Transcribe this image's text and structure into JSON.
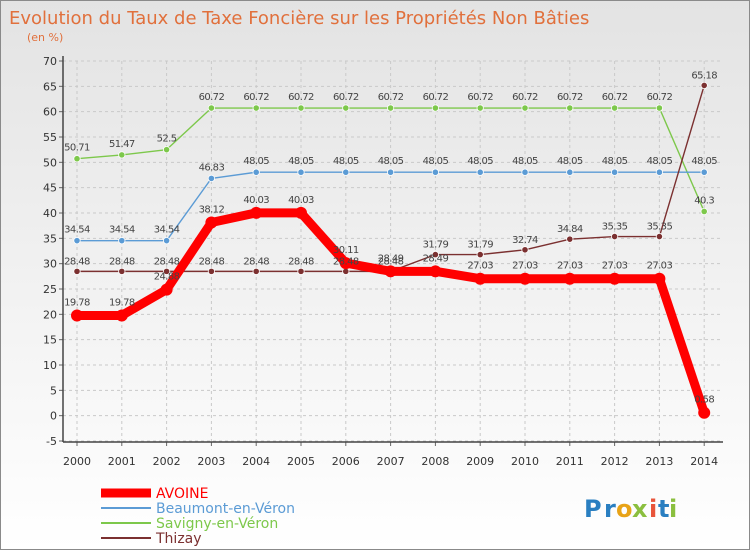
{
  "chart_data": {
    "type": "line",
    "title": "Evolution du Taux de Taxe Foncière sur les Propriétés Non Bâties",
    "subtitle": "(en %)",
    "xlabel": "",
    "ylabel": "",
    "ylim": [
      -5,
      70
    ],
    "ytick_step": 5,
    "grid": true,
    "legend_position": "bottom-left",
    "categories": [
      "2000",
      "2001",
      "2002",
      "2003",
      "2004",
      "2005",
      "2006",
      "2007",
      "2008",
      "2009",
      "2010",
      "2011",
      "2012",
      "2013",
      "2014"
    ],
    "series": [
      {
        "name": "Savigny-en-Véron",
        "color": "#7dc84b",
        "values": [
          50.71,
          51.47,
          52.5,
          60.72,
          60.72,
          60.72,
          60.72,
          60.72,
          60.72,
          60.72,
          60.72,
          60.72,
          60.72,
          60.72,
          40.3
        ],
        "labels": [
          "50.71",
          "51.47",
          "52.5",
          "60.72",
          "60.72",
          "60.72",
          "60.72",
          "60.72",
          "60.72",
          "60.72",
          "60.72",
          "60.72",
          "60.72",
          "60.72",
          "40.3"
        ]
      },
      {
        "name": "Beaumont-en-Véron",
        "color": "#5b9bd5",
        "values": [
          34.54,
          34.54,
          34.54,
          46.83,
          48.05,
          48.05,
          48.05,
          48.05,
          48.05,
          48.05,
          48.05,
          48.05,
          48.05,
          48.05,
          48.05
        ],
        "labels": [
          "34.54",
          "34.54",
          "34.54",
          "46.83",
          "48.05",
          "48.05",
          "48.05",
          "48.05",
          "48.05",
          "48.05",
          "48.05",
          "48.05",
          "48.05",
          "48.05",
          "48.05"
        ]
      },
      {
        "name": "Thizay",
        "color": "#7b3030",
        "values": [
          28.48,
          28.48,
          28.48,
          28.48,
          28.48,
          28.48,
          28.48,
          28.48,
          31.79,
          31.79,
          32.74,
          34.84,
          35.35,
          35.35,
          65.18
        ],
        "labels": [
          "28.48",
          "28.48",
          "28.48",
          "28.48",
          "28.48",
          "28.48",
          "28.48",
          "28.48",
          "31.79",
          "31.79",
          "32.74",
          "34.84",
          "35.35",
          "35.35",
          "65.18"
        ]
      },
      {
        "name": "AVOINE",
        "color": "#ff0000",
        "values": [
          19.78,
          19.78,
          24.88,
          38.12,
          40.03,
          40.03,
          30.11,
          28.49,
          28.49,
          27.03,
          27.03,
          27.03,
          27.03,
          27.03,
          0.58
        ],
        "labels": [
          "19.78",
          "19.78",
          "24.88",
          "38.12",
          "40.03",
          "40.03",
          "30.11",
          "28.49",
          "28.49",
          "27.03",
          "27.03",
          "27.03",
          "27.03",
          "27.03",
          "0.58"
        ]
      }
    ],
    "legend_order": [
      "AVOINE",
      "Beaumont-en-Véron",
      "Savigny-en-Véron",
      "Thizay"
    ]
  },
  "branding": {
    "logo_text": "Proxiti",
    "logo_letters": [
      "P",
      "r",
      "o",
      "x",
      "i",
      "t",
      "i"
    ],
    "logo_colors": [
      "#2a7fc1",
      "#2a7fc1",
      "#e8a317",
      "#8bbf3f",
      "#e8553b",
      "#2a7fc1",
      "#8bbf3f"
    ]
  }
}
